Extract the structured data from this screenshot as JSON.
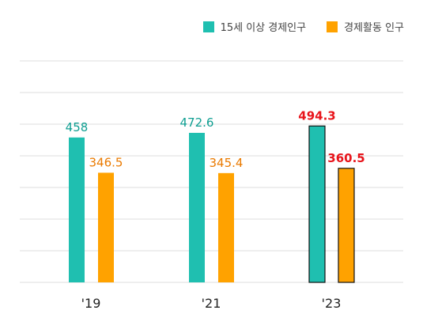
{
  "colors": {
    "teal": "#1fbfb0",
    "orange": "#ffa200",
    "highlight_label": "#e8141b",
    "teal_label": "#0e9e91",
    "orange_label": "#ea7a00",
    "grid": "#dcdcdc",
    "highlight_border": "#111111"
  },
  "legend": [
    {
      "label": "15세 이상 경제인구",
      "color": "#1fbfb0",
      "icon": "teal-square-icon"
    },
    {
      "label": "경제활동 인구",
      "color": "#ffa200",
      "icon": "orange-square-icon"
    }
  ],
  "chart_data": {
    "type": "bar",
    "title": "",
    "xlabel": "",
    "ylabel": "",
    "categories": [
      "'19",
      "'21",
      "'23"
    ],
    "series": [
      {
        "name": "15세 이상 경제인구",
        "values": [
          458,
          472.6,
          494.3
        ],
        "labels": [
          "458",
          "472.6",
          "494.3"
        ]
      },
      {
        "name": "경제활동 인구",
        "values": [
          346.5,
          345.4,
          360.5
        ],
        "labels": [
          "346.5",
          "345.4",
          "360.5"
        ]
      }
    ],
    "highlighted_category": "'23",
    "ylim": [
      0,
      700
    ],
    "grid": true,
    "legend_position": "top-right"
  }
}
